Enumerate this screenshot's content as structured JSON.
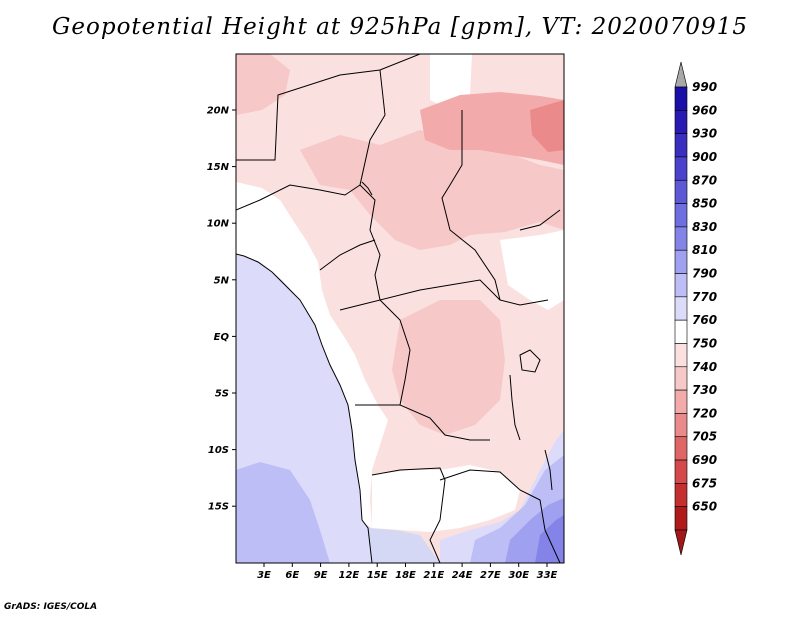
{
  "title": "Geopotential Height at 925hPa [gpm], VT: 2020070915",
  "credit": "GrADS: IGES/COLA",
  "map": {
    "lat_labels": [
      "20N",
      "15N",
      "10N",
      "5N",
      "EQ",
      "5S",
      "10S",
      "15S"
    ],
    "lon_labels": [
      "3E",
      "6E",
      "9E",
      "12E",
      "15E",
      "18E",
      "21E",
      "24E",
      "27E",
      "30E",
      "33E"
    ],
    "ocean_color": "#d4d8f4"
  },
  "colorbar": {
    "levels": [
      "990",
      "960",
      "930",
      "900",
      "870",
      "850",
      "830",
      "810",
      "790",
      "770",
      "760",
      "750",
      "740",
      "730",
      "720",
      "705",
      "690",
      "675",
      "650"
    ],
    "colors": [
      "#1a0fa6",
      "#2a1ab4",
      "#3a2ec0",
      "#4a42cc",
      "#5c58d6",
      "#6e6ee0",
      "#8484e8",
      "#a0a0f0",
      "#bebef6",
      "#dcdcfa",
      "#ffffff",
      "#fbe0e0",
      "#f7c8c8",
      "#f2aaaa",
      "#ea8a8a",
      "#e06666",
      "#d44a4a",
      "#c43030",
      "#b01a1a"
    ],
    "top_arrow_color": "#a8a8a8",
    "bottom_arrow_color": "#a01818"
  },
  "chart_data": {
    "type": "heatmap",
    "title": "Geopotential Height at 925hPa [gpm], VT: 2020070915",
    "variable": "Geopotential Height",
    "pressure_level": "925hPa",
    "units": "gpm",
    "valid_time": "2020070915",
    "xlabel": "",
    "ylabel": "",
    "x_ticks": [
      "3E",
      "6E",
      "9E",
      "12E",
      "15E",
      "18E",
      "21E",
      "24E",
      "27E",
      "30E",
      "33E"
    ],
    "y_ticks": [
      "20N",
      "15N",
      "10N",
      "5N",
      "EQ",
      "5S",
      "10S",
      "15S"
    ],
    "xlim": [
      0,
      35
    ],
    "ylim": [
      -20,
      25
    ],
    "legend_levels": [
      650,
      675,
      690,
      705,
      720,
      730,
      740,
      750,
      760,
      770,
      790,
      810,
      830,
      850,
      870,
      900,
      930,
      960,
      990
    ]
  }
}
